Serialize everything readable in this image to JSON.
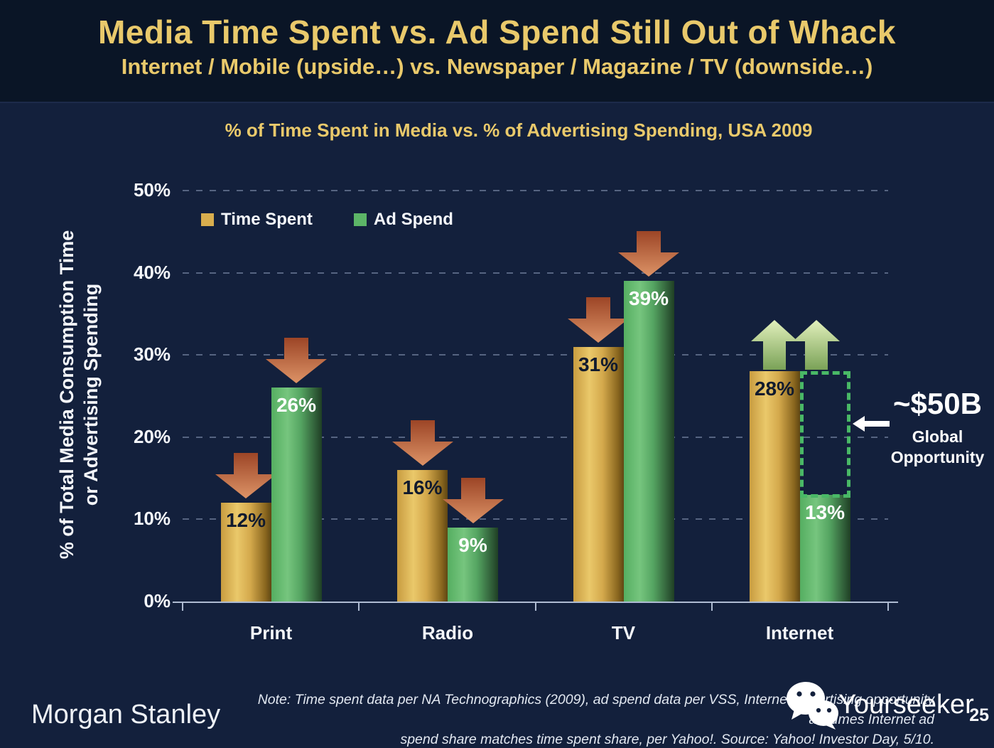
{
  "slide": {
    "title": "Media Time Spent vs. Ad Spend Still Out of Whack",
    "subtitle": "Internet / Mobile (upside…) vs. Newspaper / Magazine / TV (downside…)",
    "page_number": "25",
    "brand": "Morgan Stanley",
    "watermark": "Yourseeker",
    "note_line1": "Note: Time spent data per NA Technographics (2009), ad spend data per VSS, Internet advertising opportunity assumes Internet ad",
    "note_line2": "spend share matches time spent share, per Yahoo!. Source: Yahoo! Investor Day, 5/10.",
    "colors": {
      "background": "#13203c",
      "header_background": "#0a1526",
      "accent_gold_text": "#e9c96b",
      "time_spent_bar": "#d9ae4e",
      "ad_spend_bar": "#5cb567",
      "down_arrow": "#c0603f",
      "up_arrow": "#a7c87e",
      "opportunity_outline": "#49b866"
    }
  },
  "chart_data": {
    "type": "bar",
    "title": "% of Time Spent in Media vs. % of Advertising Spending, USA 2009",
    "categories": [
      "Print",
      "Radio",
      "TV",
      "Internet"
    ],
    "series": [
      {
        "name": "Time Spent",
        "color": "#d9ae4e",
        "values": [
          12,
          16,
          31,
          28
        ],
        "trend": [
          "down",
          "down",
          "down",
          "up"
        ]
      },
      {
        "name": "Ad Spend",
        "color": "#5cb567",
        "values": [
          26,
          9,
          39,
          13
        ],
        "trend": [
          "down",
          "down",
          "down",
          "up"
        ]
      }
    ],
    "ylabel": "% of Total Media Consumption Time or Advertising Spending",
    "ylabel_lines": [
      "% of Total Media Consumption Time",
      "or Advertising Spending"
    ],
    "ylim": [
      0,
      50
    ],
    "ytick_step": 10,
    "grid": "dashed horizontal gridlines",
    "legend_position": "top-left inside plot",
    "annotation": {
      "value": "~$50B",
      "label": "Global Opportunity",
      "category_index": 3,
      "upper_pct": 28,
      "lower_pct": 13
    }
  }
}
